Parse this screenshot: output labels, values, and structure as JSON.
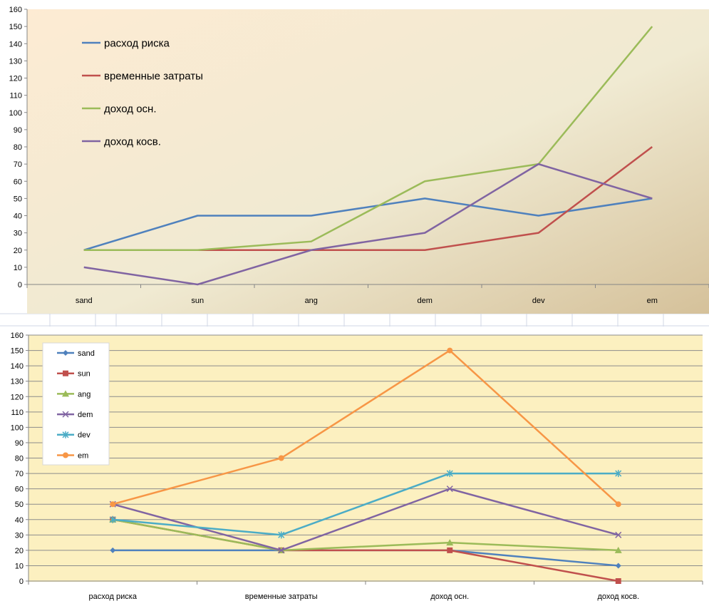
{
  "chart_data": [
    {
      "type": "line",
      "categories": [
        "sand",
        "sun",
        "ang",
        "dem",
        "dev",
        "em"
      ],
      "yticks": [
        "0",
        "10",
        "20",
        "30",
        "40",
        "50",
        "60",
        "70",
        "80",
        "90",
        "100",
        "110",
        "120",
        "130",
        "140",
        "150",
        "160"
      ],
      "ylim": [
        0,
        160
      ],
      "grid": false,
      "legend_position": "top-left",
      "series": [
        {
          "name": "расход риска",
          "color": "#4f81bd",
          "values": [
            20,
            40,
            40,
            50,
            40,
            50
          ]
        },
        {
          "name": "временные затраты",
          "color": "#c0504d",
          "values": [
            20,
            20,
            20,
            20,
            30,
            80
          ]
        },
        {
          "name": "доход осн.",
          "color": "#9bbb59",
          "values": [
            20,
            20,
            25,
            60,
            70,
            150
          ]
        },
        {
          "name": "доход косв.",
          "color": "#8064a2",
          "values": [
            10,
            0,
            20,
            30,
            70,
            50
          ]
        }
      ]
    },
    {
      "type": "line",
      "categories": [
        "расход риска",
        "временные затраты",
        "доход осн.",
        "доход косв."
      ],
      "yticks": [
        "0",
        "10",
        "20",
        "30",
        "40",
        "50",
        "60",
        "70",
        "80",
        "90",
        "100",
        "110",
        "120",
        "130",
        "140",
        "150",
        "160"
      ],
      "ylim": [
        0,
        160
      ],
      "grid": true,
      "legend_position": "top-left",
      "series": [
        {
          "name": "sand",
          "color": "#4f81bd",
          "marker": "diamond",
          "values": [
            20,
            20,
            20,
            10
          ]
        },
        {
          "name": "sun",
          "color": "#c0504d",
          "marker": "square",
          "values": [
            40,
            20,
            20,
            0
          ]
        },
        {
          "name": "ang",
          "color": "#9bbb59",
          "marker": "triangle",
          "values": [
            40,
            20,
            25,
            20
          ]
        },
        {
          "name": "dem",
          "color": "#8064a2",
          "marker": "x",
          "values": [
            50,
            20,
            60,
            30
          ]
        },
        {
          "name": "dev",
          "color": "#4bacc6",
          "marker": "star",
          "values": [
            40,
            30,
            70,
            70
          ]
        },
        {
          "name": "em",
          "color": "#f79646",
          "marker": "circle",
          "values": [
            50,
            80,
            150,
            50
          ]
        }
      ]
    }
  ]
}
